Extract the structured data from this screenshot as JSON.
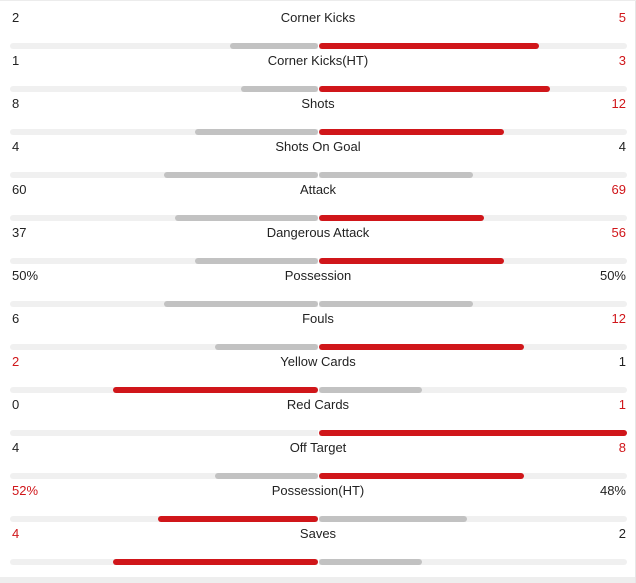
{
  "colors": {
    "win": "#d0161a",
    "lose": "#c2c2c2",
    "track": "#f0f0f0"
  },
  "stats": [
    {
      "name": "Corner Kicks",
      "home": "2",
      "away": "5",
      "home_share": 0.286,
      "away_share": 0.714,
      "winner": "away"
    },
    {
      "name": "Corner Kicks(HT)",
      "home": "1",
      "away": "3",
      "home_share": 0.25,
      "away_share": 0.75,
      "winner": "away"
    },
    {
      "name": "Shots",
      "home": "8",
      "away": "12",
      "home_share": 0.4,
      "away_share": 0.6,
      "winner": "away"
    },
    {
      "name": "Shots On Goal",
      "home": "4",
      "away": "4",
      "home_share": 0.5,
      "away_share": 0.5,
      "winner": "none"
    },
    {
      "name": "Attack",
      "home": "60",
      "away": "69",
      "home_share": 0.465,
      "away_share": 0.535,
      "winner": "away"
    },
    {
      "name": "Dangerous Attack",
      "home": "37",
      "away": "56",
      "home_share": 0.398,
      "away_share": 0.602,
      "winner": "away"
    },
    {
      "name": "Possession",
      "home": "50%",
      "away": "50%",
      "home_share": 0.5,
      "away_share": 0.5,
      "winner": "none"
    },
    {
      "name": "Fouls",
      "home": "6",
      "away": "12",
      "home_share": 0.333,
      "away_share": 0.667,
      "winner": "away"
    },
    {
      "name": "Yellow Cards",
      "home": "2",
      "away": "1",
      "home_share": 0.667,
      "away_share": 0.333,
      "winner": "home"
    },
    {
      "name": "Red Cards",
      "home": "0",
      "away": "1",
      "home_share": 0.0,
      "away_share": 1.0,
      "winner": "away"
    },
    {
      "name": "Off Target",
      "home": "4",
      "away": "8",
      "home_share": 0.333,
      "away_share": 0.667,
      "winner": "away"
    },
    {
      "name": "Possession(HT)",
      "home": "52%",
      "away": "48%",
      "home_share": 0.52,
      "away_share": 0.48,
      "winner": "home"
    },
    {
      "name": "Saves",
      "home": "4",
      "away": "2",
      "home_share": 0.667,
      "away_share": 0.333,
      "winner": "home"
    }
  ]
}
